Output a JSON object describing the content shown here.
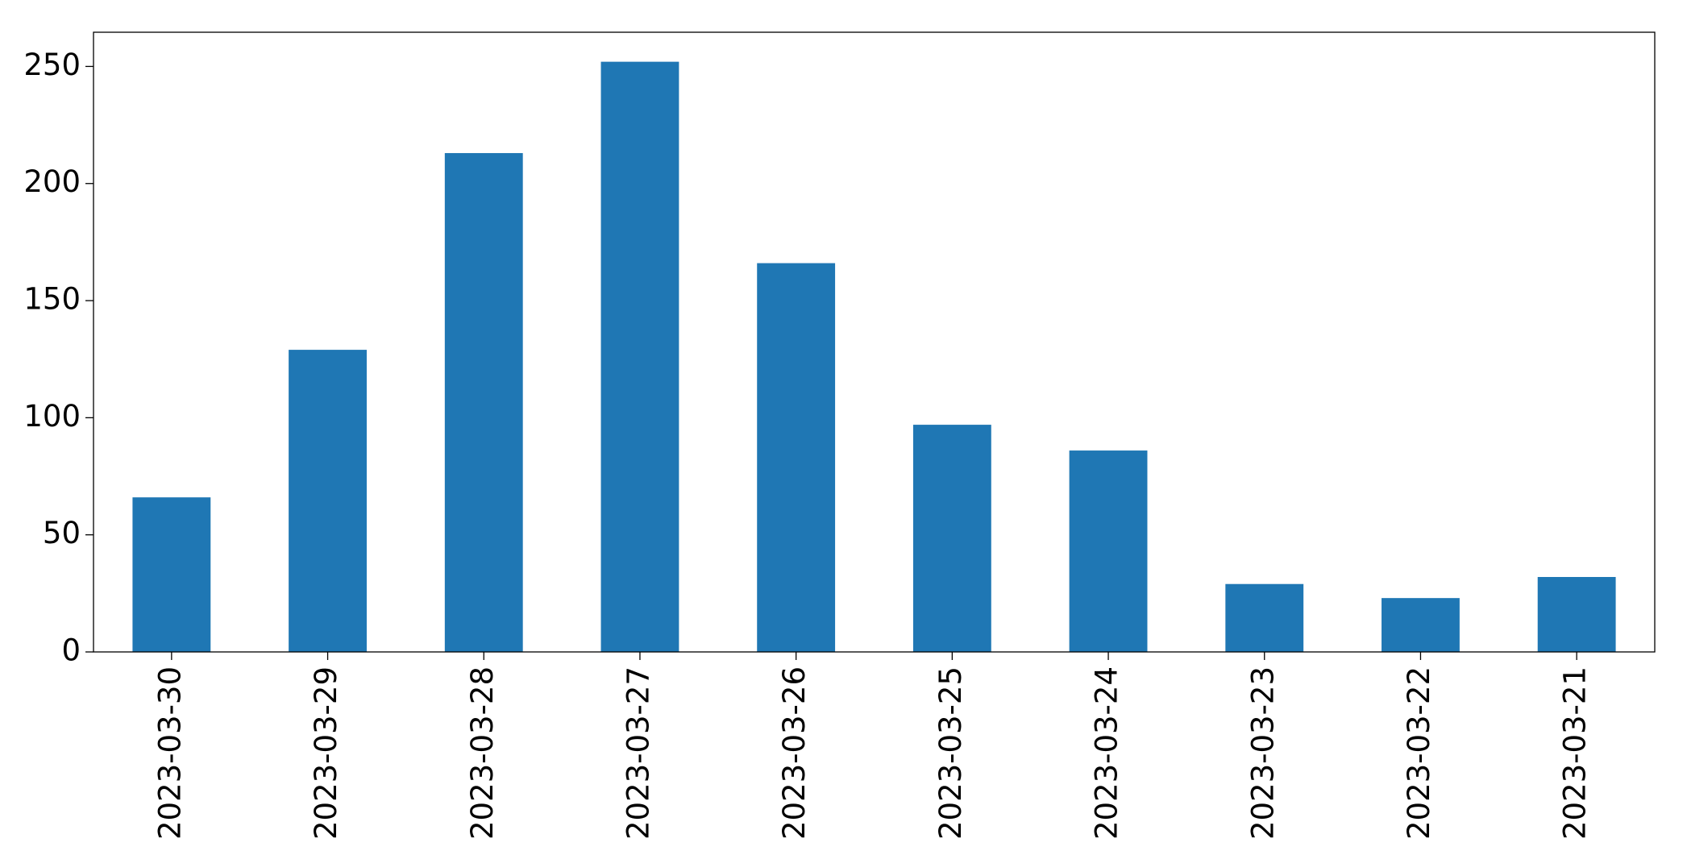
{
  "chart_data": {
    "type": "bar",
    "categories": [
      "2023-03-30",
      "2023-03-29",
      "2023-03-28",
      "2023-03-27",
      "2023-03-26",
      "2023-03-25",
      "2023-03-24",
      "2023-03-23",
      "2023-03-22",
      "2023-03-21"
    ],
    "values": [
      66,
      129,
      213,
      252,
      166,
      97,
      86,
      29,
      23,
      32
    ],
    "color": "#1f77b4",
    "ylim": [
      0,
      264.6
    ],
    "yticks": [
      0,
      50,
      100,
      150,
      200,
      250
    ],
    "grid": false
  }
}
